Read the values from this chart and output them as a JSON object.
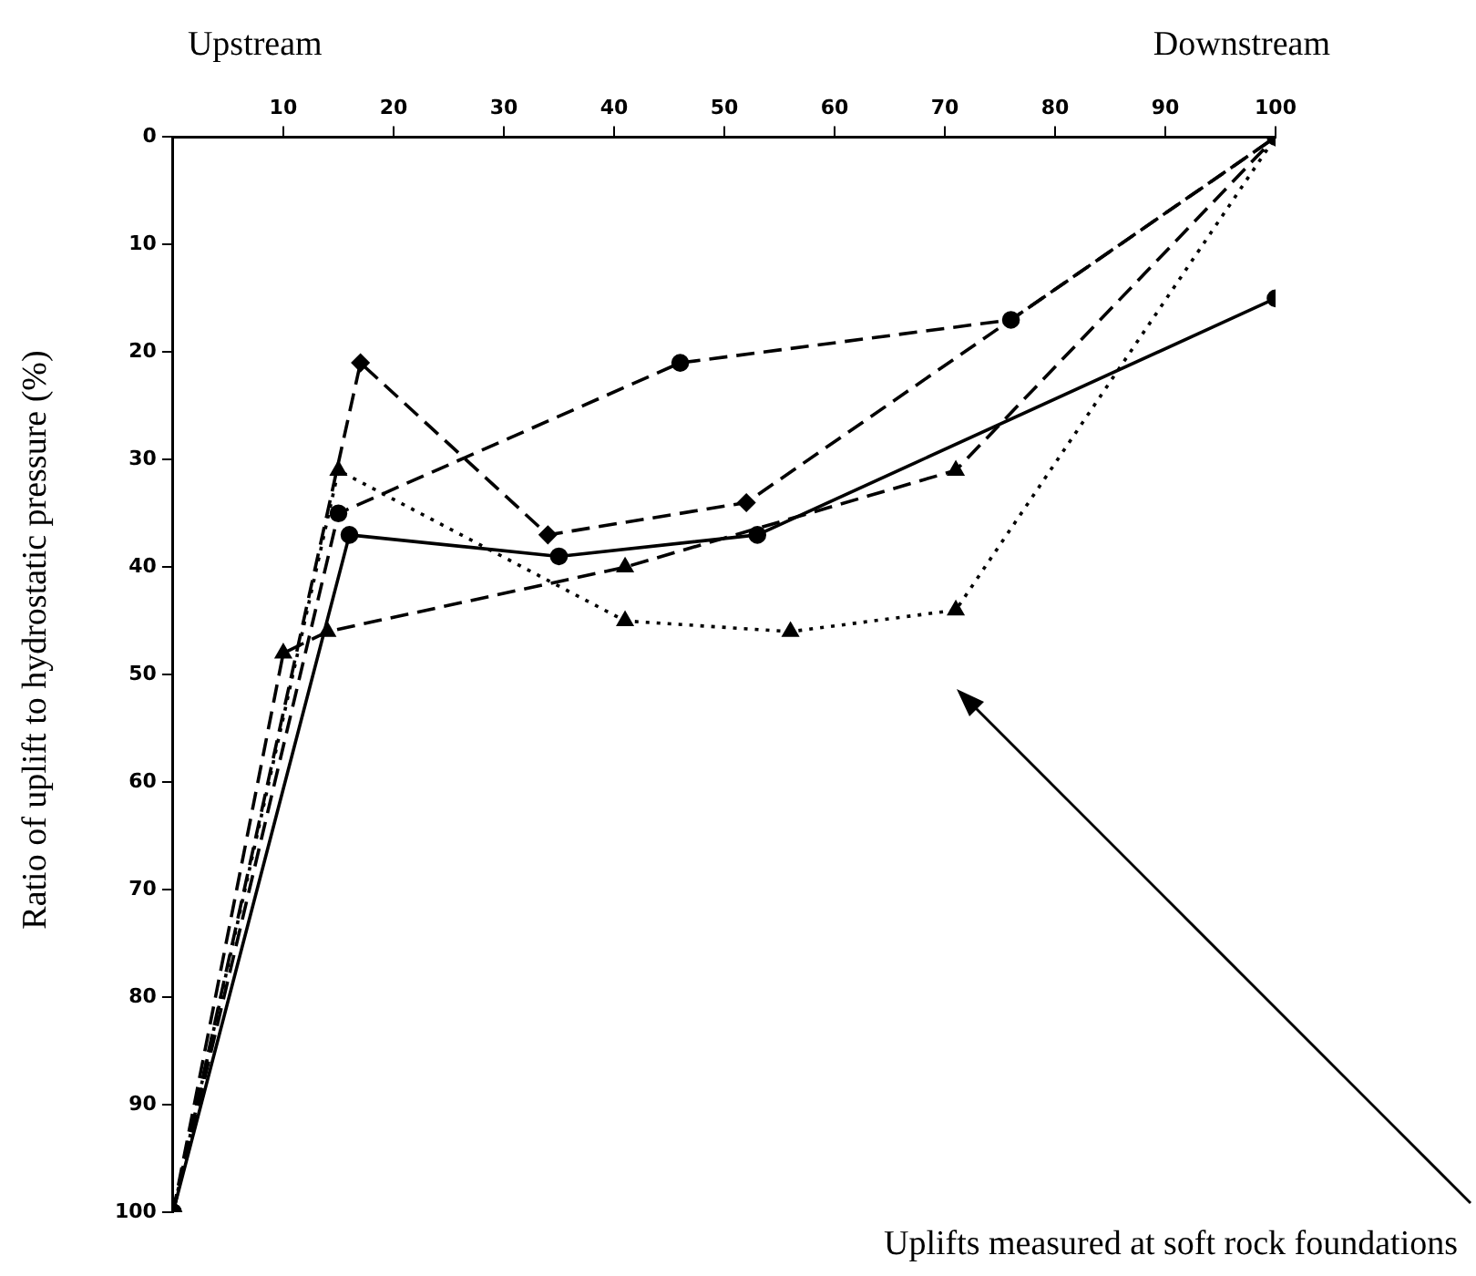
{
  "chart_data": {
    "type": "line",
    "ylabel": "Ratio of uplift to hydrostatic pressure (%)",
    "annotations": [
      "Upstream",
      "Downstream",
      "Uplifts measured at soft rock foundations"
    ],
    "xlim": [
      0,
      100
    ],
    "xticks": [
      10,
      20,
      30,
      40,
      50,
      60,
      70,
      80,
      90,
      100
    ],
    "ylim": [
      100,
      0
    ],
    "yticks": [
      0,
      10,
      20,
      30,
      40,
      50,
      60,
      70,
      80,
      90,
      100
    ],
    "grid": false,
    "legend": false,
    "series": [
      {
        "color": "#000000",
        "x": [
          0,
          15,
          41,
          56,
          71,
          100
        ],
        "values": [
          100,
          31,
          45,
          46,
          44,
          0
        ],
        "marker": "triangle",
        "line_style": "dotted"
      },
      {
        "color": "#000000",
        "x": [
          0,
          16,
          35,
          53,
          100
        ],
        "values": [
          100,
          37,
          39,
          37,
          15
        ],
        "marker": "circle",
        "line_style": "solid"
      },
      {
        "color": "#000000",
        "x": [
          0,
          15,
          46,
          76,
          100
        ],
        "values": [
          100,
          35,
          21,
          17,
          0
        ],
        "marker": "circle",
        "line_style": "dashed"
      },
      {
        "color": "#000000",
        "x": [
          0,
          17,
          34,
          52,
          100
        ],
        "values": [
          100,
          21,
          37,
          34,
          0
        ],
        "marker": "diamond",
        "line_style": "dashed"
      },
      {
        "color": "#000000",
        "x": [
          0,
          10,
          14,
          41,
          71,
          100
        ],
        "values": [
          100,
          48,
          46,
          40,
          31,
          0
        ],
        "marker": "triangle",
        "line_style": "dashed"
      }
    ]
  }
}
